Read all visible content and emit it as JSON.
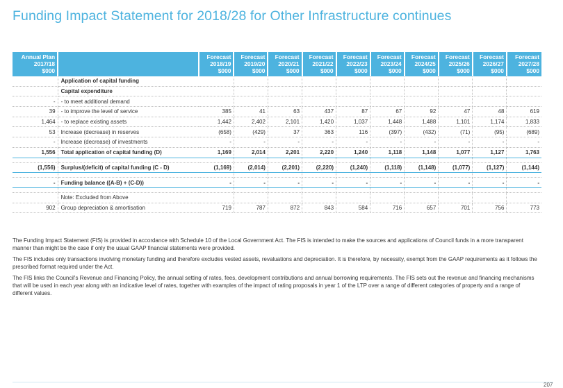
{
  "title": "Funding Impact Statement for 2018/28 for Other Infrastructure continues",
  "header": {
    "annual_plan": [
      "Annual Plan",
      "2017/18",
      "$000"
    ],
    "forecasts": [
      [
        "Forecast",
        "2018/19",
        "$000"
      ],
      [
        "Forecast",
        "2019/20",
        "$000"
      ],
      [
        "Forecast",
        "2020/21",
        "$000"
      ],
      [
        "Forecast",
        "2021/22",
        "$000"
      ],
      [
        "Forecast",
        "2022/23",
        "$000"
      ],
      [
        "Forecast",
        "2023/24",
        "$000"
      ],
      [
        "Forecast",
        "2024/25",
        "$000"
      ],
      [
        "Forecast",
        "2025/26",
        "$000"
      ],
      [
        "Forecast",
        "2026/27",
        "$000"
      ],
      [
        "Forecast",
        "2027/28",
        "$000"
      ]
    ]
  },
  "rows": [
    {
      "ap": "",
      "label": "Application of capital funding",
      "values": [
        "",
        "",
        "",
        "",
        "",
        "",
        "",
        "",
        "",
        ""
      ]
    },
    {
      "ap": "",
      "label": "Capital expenditure",
      "values": [
        "",
        "",
        "",
        "",
        "",
        "",
        "",
        "",
        "",
        ""
      ]
    },
    {
      "ap": "-",
      "label": "- to meet additional demand",
      "values": [
        "",
        "",
        "",
        "",
        "",
        "",
        "",
        "",
        "",
        ""
      ]
    },
    {
      "ap": "39",
      "label": "- to improve the level of service",
      "values": [
        "385",
        "41",
        "63",
        "437",
        "87",
        "67",
        "92",
        "47",
        "48",
        "619"
      ]
    },
    {
      "ap": "1,464",
      "label": "- to replace existing assets",
      "values": [
        "1,442",
        "2,402",
        "2,101",
        "1,420",
        "1,037",
        "1,448",
        "1,488",
        "1,101",
        "1,174",
        "1,833"
      ]
    },
    {
      "ap": "53",
      "label": "Increase (decrease) in reserves",
      "values": [
        "(658)",
        "(429)",
        "37",
        "363",
        "116",
        "(397)",
        "(432)",
        "(71)",
        "(95)",
        "(689)"
      ]
    },
    {
      "ap": "-",
      "label": "Increase (decrease) of investments",
      "values": [
        "-",
        "-",
        "-",
        "-",
        "-",
        "-",
        "-",
        "-",
        "-",
        "-"
      ]
    },
    {
      "ap": "1,556",
      "label": "Total application of capital funding (D)",
      "values": [
        "1,169",
        "2,014",
        "2,201",
        "2,220",
        "1,240",
        "1,118",
        "1,148",
        "1,077",
        "1,127",
        "1,763"
      ]
    },
    {
      "ap": "(1,556)",
      "label": "Surplus/(deficit) of capital funding (C - D)",
      "values": [
        "(1,169)",
        "(2,014)",
        "(2,201)",
        "(2,220)",
        "(1,240)",
        "(1,118)",
        "(1,148)",
        "(1,077)",
        "(1,127)",
        "(1,144)"
      ]
    },
    {
      "ap": "-",
      "label": "Funding balance ((A-B) + (C-D))",
      "values": [
        "-",
        "-",
        "-",
        "-",
        "-",
        "-",
        "-",
        "-",
        "-",
        "-"
      ]
    },
    {
      "ap": "",
      "label": "Note: Excluded from Above",
      "values": [
        "",
        "",
        "",
        "",
        "",
        "",
        "",
        "",
        "",
        ""
      ]
    },
    {
      "ap": "902",
      "label": "Group depreciation & amortisation",
      "values": [
        "719",
        "787",
        "872",
        "843",
        "584",
        "716",
        "657",
        "701",
        "756",
        "773"
      ]
    }
  ],
  "notes": [
    "The Funding Impact Statement (FIS) is provided in accordance with Schedule 10 of the Local Government Act. The FIS is intended to make the sources and applications of Council funds in a more transparent manner than might be the case if only the usual GAAP financial statements were provided.",
    "The FIS includes only transactions involving monetary funding and therefore excludes vested assets, revaluations and depreciation.  It is therefore, by necessity, exempt from the GAAP requirements as it follows the prescribed format required under the Act.",
    "The FIS links the Council's Revenue and Financing Policy, the annual setting of rates, fees, development contributions and annual borrowing requirements.  The FIS sets out the revenue and financing mechanisms that will be used in each year along with an indicative level of rates, together with examples of the impact of rating proposals in year 1 of the LTP over a range of different categories of property and a range of different values."
  ],
  "page_number": "207"
}
